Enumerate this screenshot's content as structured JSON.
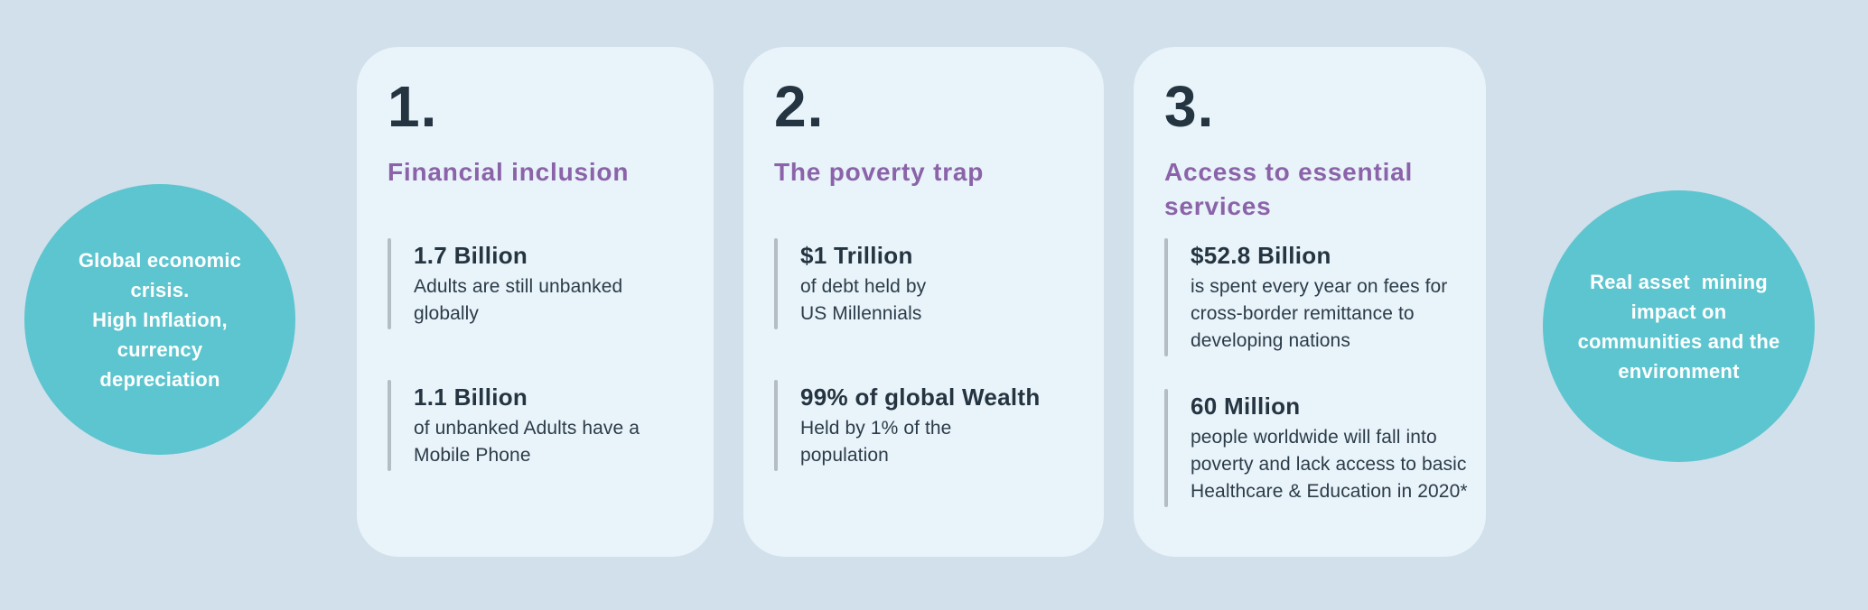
{
  "colors": {
    "page_background": "#d2e0eb",
    "card_background": "#e9f3fa",
    "bubble_teal": "#5cc5cf",
    "heading_purple": "#8a63a9",
    "text_dark": "#243440",
    "stat_bar_gray": "#b4bdc3",
    "bubble_text_white": "#ffffff"
  },
  "left_bubble": {
    "text": "Global economic\ncrisis.\nHigh Inflation,\ncurrency\ndepreciation"
  },
  "right_bubble": {
    "text": "Real asset  mining\nimpact on\ncommunities and the\nenvironment"
  },
  "cards": [
    {
      "number": "1.",
      "title": "Financial inclusion",
      "stats": [
        {
          "value": "1.7 Billion",
          "description": "Adults are still unbanked\nglobally"
        },
        {
          "value": "1.1 Billion",
          "description": "of unbanked Adults have a\nMobile Phone"
        }
      ]
    },
    {
      "number": "2.",
      "title": "The poverty trap",
      "stats": [
        {
          "value": "$1 Trillion",
          "description": "of debt held by\nUS Millennials"
        },
        {
          "value": "99% of global Wealth",
          "description": "Held by 1% of the\npopulation"
        }
      ]
    },
    {
      "number": "3.",
      "title": "Access to essential\nservices",
      "stats": [
        {
          "value": "$52.8 Billion",
          "description": "is spent every year on fees for\ncross-border remittance to\ndeveloping nations"
        },
        {
          "value": "60 Million",
          "description": "people worldwide will fall into\npoverty and lack access to basic\nHealthcare & Education in 2020*"
        }
      ]
    }
  ]
}
